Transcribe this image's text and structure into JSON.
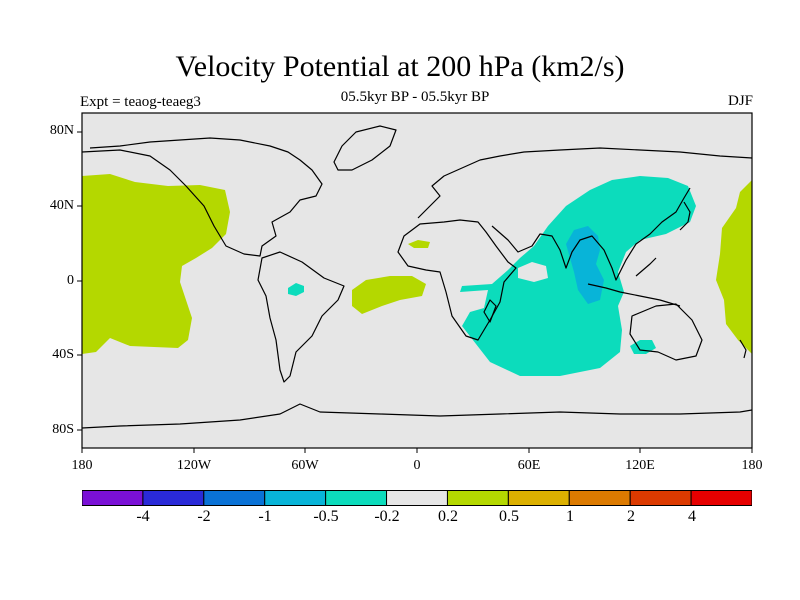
{
  "title": "Velocity Potential at 200 hPa (km2/s)",
  "subtitle": "05.5kyr BP - 05.5kyr BP",
  "experiment": "Expt = teaog-teaeg3",
  "season": "DJF",
  "map": {
    "projection": "cylindrical equidistant",
    "lon_range": [
      -180,
      180
    ],
    "lat_range": [
      -90,
      90
    ],
    "x_ticks": [
      "180",
      "120W",
      "60W",
      "0",
      "60E",
      "120E",
      "180"
    ],
    "y_ticks": [
      "80N",
      "40N",
      "0",
      "40S",
      "80S"
    ],
    "background_color": "#e6e6e6",
    "coastline_color": "#000000"
  },
  "colorbar": {
    "labels": [
      "-4",
      "-2",
      "-1",
      "-0.5",
      "-0.2",
      "0.2",
      "0.5",
      "1",
      "2",
      "4"
    ],
    "colors": [
      "#7a10d6",
      "#2a2ad8",
      "#0a72d6",
      "#08b4d8",
      "#0cdcbc",
      "#e6e6e6",
      "#b4d800",
      "#dcb000",
      "#dc7a00",
      "#dc3a00",
      "#e60000"
    ]
  }
}
